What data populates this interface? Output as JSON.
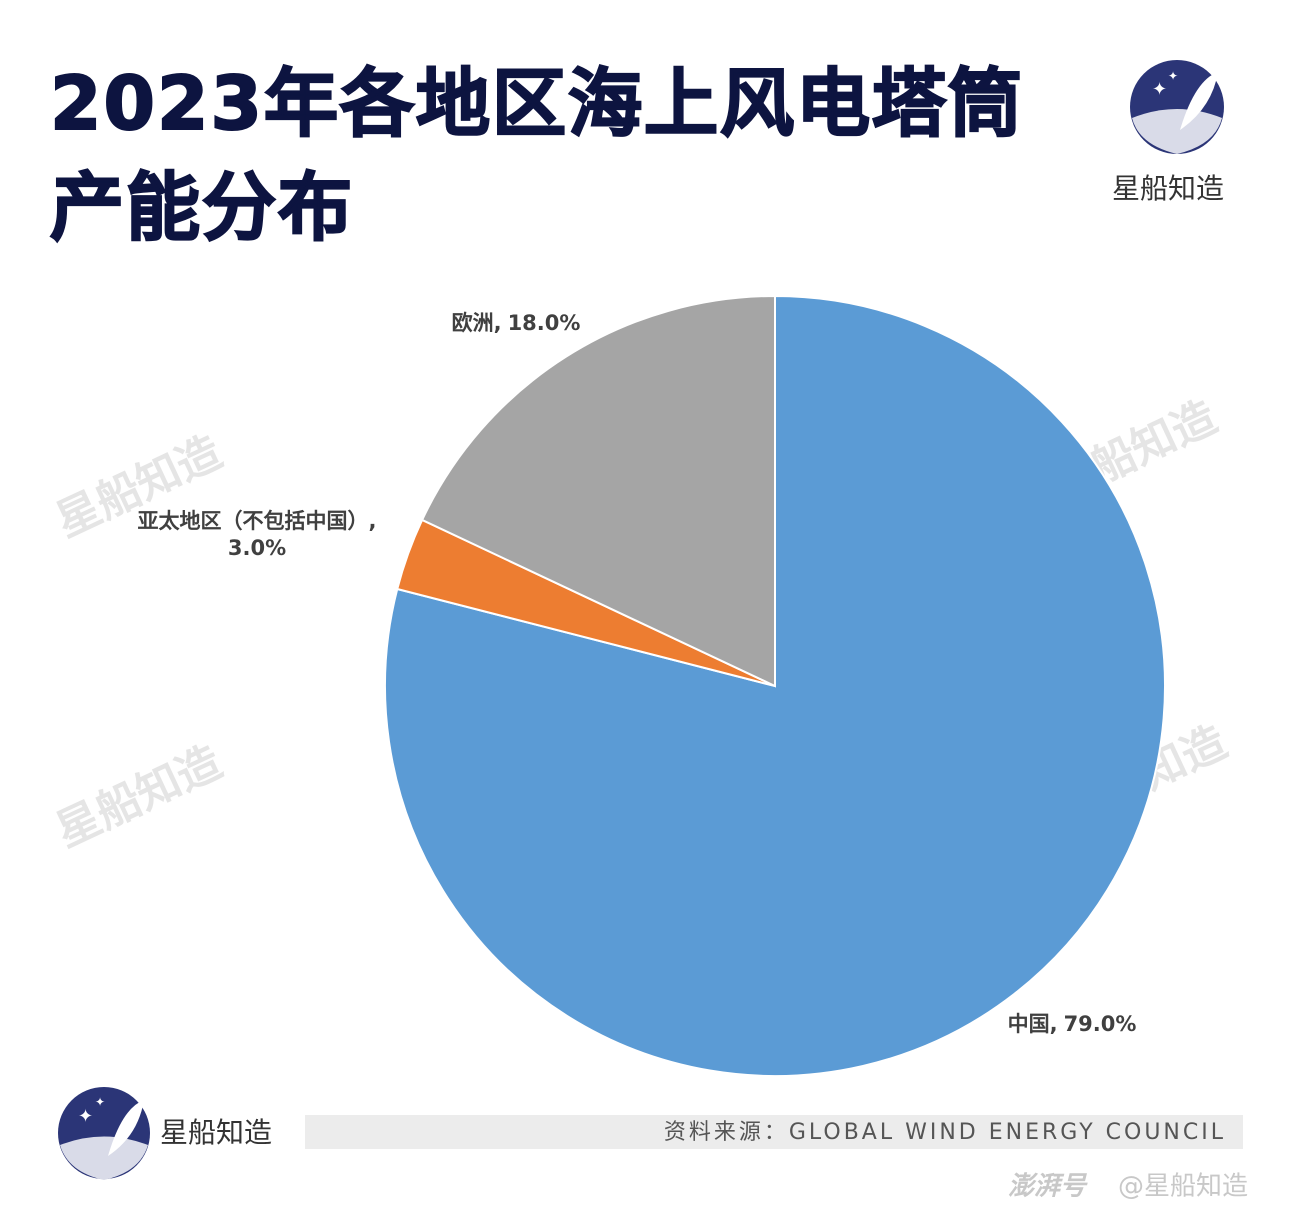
{
  "chart_data": {
    "type": "pie",
    "title": "2023年各地区海上风电塔筒产能分布",
    "categories": [
      "中国",
      "亚太地区（不包括中国）",
      "欧洲"
    ],
    "values": [
      79.0,
      3.0,
      18.0
    ],
    "value_labels": [
      "79.0%",
      "3.0%",
      "18.0%"
    ],
    "label_separator": ",",
    "colors": [
      "#5b9bd5",
      "#ed7d31",
      "#a5a5a5"
    ],
    "brand": "星船知造",
    "source": "资料来源：GLOBAL WIND ENERGY COUNCIL",
    "footer": {
      "platform": "澎湃号",
      "account": "@星船知造"
    }
  }
}
